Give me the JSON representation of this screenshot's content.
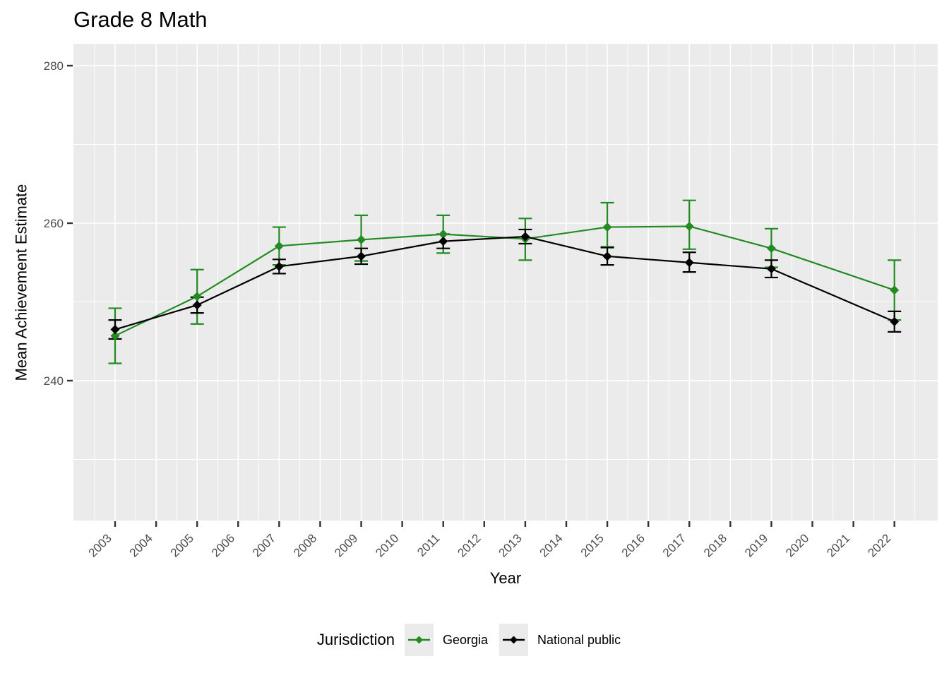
{
  "title": "Grade 8 Math",
  "colors": {
    "panel_bg": "#EBEBEB",
    "grid": "#FFFFFF",
    "tick_mark": "#333333",
    "tick_label": "#4D4D4D",
    "georgia_green": "#228B22",
    "national_black": "#000000"
  },
  "chart_data": {
    "type": "line",
    "title": "Grade 8 Math",
    "xlabel": "Year",
    "ylabel": "Mean Achievement Estimate",
    "legend": {
      "title": "Jurisdiction",
      "position": "bottom"
    },
    "grid": true,
    "error_bars": true,
    "marker": "diamond",
    "xlim": [
      2002.0,
      2023.05
    ],
    "ylim": [
      222.2,
      282.8
    ],
    "x_ticks": [
      2003,
      2004,
      2005,
      2006,
      2007,
      2008,
      2009,
      2010,
      2011,
      2012,
      2013,
      2014,
      2015,
      2016,
      2017,
      2018,
      2019,
      2020,
      2021,
      2022
    ],
    "y_ticks": [
      240,
      260,
      280
    ],
    "y_minor": [
      230,
      250,
      270
    ],
    "series": [
      {
        "name": "Georgia",
        "color": "#228B22",
        "x": [
          2003,
          2005,
          2007,
          2009,
          2011,
          2013,
          2015,
          2017,
          2019,
          2022
        ],
        "y": [
          245.7,
          250.7,
          257.1,
          257.9,
          258.6,
          258.0,
          259.5,
          259.6,
          256.8,
          251.5
        ],
        "ci_low": [
          242.2,
          247.2,
          254.7,
          255.2,
          256.2,
          255.3,
          257.0,
          256.7,
          254.4,
          247.7
        ],
        "ci_high": [
          249.2,
          254.1,
          259.5,
          261.0,
          261.0,
          260.6,
          262.6,
          262.9,
          259.3,
          255.3
        ]
      },
      {
        "name": "National public",
        "color": "#000000",
        "x": [
          2003,
          2005,
          2007,
          2009,
          2011,
          2013,
          2015,
          2017,
          2019,
          2022
        ],
        "y": [
          246.5,
          249.6,
          254.5,
          255.8,
          257.7,
          258.3,
          255.8,
          255.0,
          254.2,
          247.5
        ],
        "ci_low": [
          245.3,
          248.6,
          253.6,
          254.8,
          256.8,
          257.4,
          254.7,
          253.8,
          253.1,
          246.2
        ],
        "ci_high": [
          247.7,
          250.6,
          255.4,
          256.8,
          258.6,
          259.2,
          256.9,
          256.3,
          255.3,
          248.8
        ]
      }
    ]
  }
}
